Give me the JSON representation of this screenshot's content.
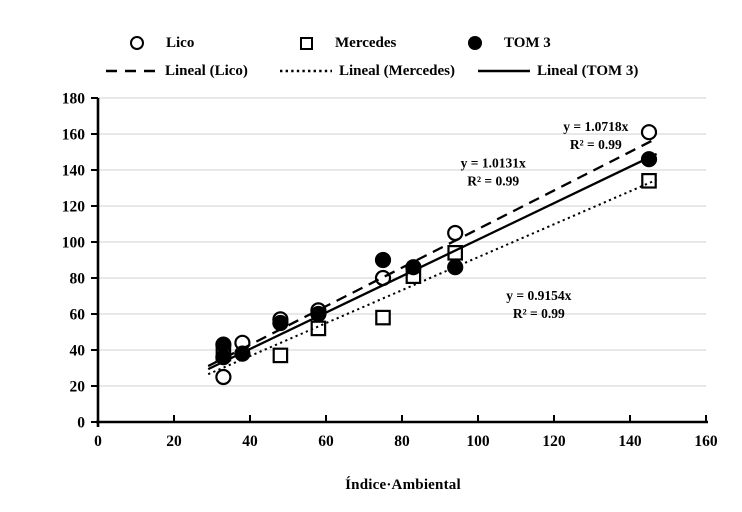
{
  "figure": {
    "background": "#ffffff",
    "ink": "#000000",
    "grid_color": "#d9d9d9"
  },
  "legend": {
    "row1": [
      {
        "label": "Lico",
        "marker": "open-circle"
      },
      {
        "label": "Mercedes",
        "marker": "open-square"
      },
      {
        "label": "TOM 3",
        "marker": "filled-circle"
      }
    ],
    "row2": [
      {
        "label": "Lineal (Lico)",
        "line": "dashed"
      },
      {
        "label": "Lineal (Mercedes)",
        "line": "dotted"
      },
      {
        "label": "Lineal (TOM 3)",
        "line": "solid"
      }
    ]
  },
  "chart_data": {
    "type": "scatter",
    "title": "",
    "xlabel": "Índice·Ambiental",
    "ylabel": "",
    "xlim": [
      0,
      160
    ],
    "ylim": [
      0,
      180
    ],
    "x_ticks": [
      0,
      20,
      40,
      60,
      80,
      100,
      120,
      140,
      160
    ],
    "y_ticks": [
      0,
      20,
      40,
      60,
      80,
      100,
      120,
      140,
      160,
      180
    ],
    "grid": "horizontal",
    "legend_position": "top",
    "series": [
      {
        "name": "Lico",
        "marker": "open-circle",
        "points": [
          [
            33,
            25
          ],
          [
            38,
            44
          ],
          [
            48,
            57
          ],
          [
            58,
            62
          ],
          [
            75,
            80
          ],
          [
            94,
            105
          ],
          [
            145,
            161
          ]
        ]
      },
      {
        "name": "Mercedes",
        "marker": "open-square",
        "points": [
          [
            33,
            38
          ],
          [
            48,
            37
          ],
          [
            58,
            52
          ],
          [
            75,
            58
          ],
          [
            83,
            81
          ],
          [
            94,
            94
          ],
          [
            145,
            134
          ]
        ]
      },
      {
        "name": "TOM 3",
        "marker": "filled-circle",
        "points": [
          [
            33,
            43
          ],
          [
            33,
            36
          ],
          [
            38,
            38
          ],
          [
            48,
            55
          ],
          [
            58,
            60
          ],
          [
            75,
            90
          ],
          [
            83,
            86
          ],
          [
            94,
            86
          ],
          [
            145,
            146
          ]
        ]
      }
    ],
    "trendlines": [
      {
        "name": "Lineal (Lico)",
        "style": "dashed",
        "equation": "y = 1.0718x",
        "r2": "R² = 0.99",
        "slope": 1.0718,
        "x_range": [
          29,
          147
        ]
      },
      {
        "name": "Lineal (Mercedes)",
        "style": "dotted",
        "equation": "y = 0.9154x",
        "r2": "R² = 0.99",
        "slope": 0.9154,
        "x_range": [
          29,
          147
        ]
      },
      {
        "name": "Lineal (TOM 3)",
        "style": "solid",
        "equation": "y = 1.0131x",
        "r2": "R² = 0.99",
        "slope": 1.0131,
        "x_range": [
          29,
          147
        ]
      }
    ],
    "annotations": [
      {
        "lines": [
          "y = 1.0718x",
          "R² = 0.99"
        ],
        "x": 131,
        "y": 164
      },
      {
        "lines": [
          "y = 1.0131x",
          "R² = 0.99"
        ],
        "x": 104,
        "y": 143.5
      },
      {
        "lines": [
          "y = 0.9154x",
          "R² = 0.99"
        ],
        "x": 116,
        "y": 70
      }
    ]
  }
}
